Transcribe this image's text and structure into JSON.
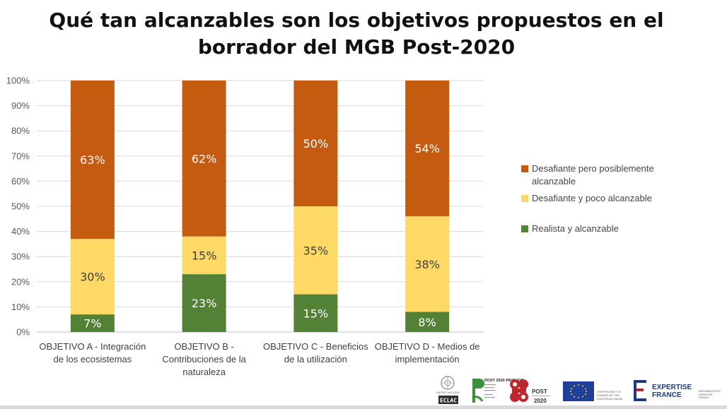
{
  "title_lines": [
    "Qué tan alcanzables son los objetivos propuestos en el",
    "borrador del MGB Post-2020"
  ],
  "chart_data": {
    "type": "bar",
    "stacked": true,
    "title": "Qué tan alcanzables son los objetivos propuestos en el borrador del MGB Post-2020",
    "categories": [
      [
        "OBJETIVO A - Integración",
        "de los ecosistemas"
      ],
      [
        "OBJETIVO B -",
        "Contribuciones de la",
        "naturaleza"
      ],
      [
        "OBJETIVO C - Beneficios",
        "de la utilización"
      ],
      [
        "OBJETIVO D - Medios de",
        "implementación"
      ]
    ],
    "series": [
      {
        "name": "Realista y alcanzable",
        "color": "#538135",
        "values": [
          7,
          23,
          15,
          8
        ],
        "labels": [
          "7%",
          "23%",
          "15%",
          "8%"
        ]
      },
      {
        "name": "Desafiante y poco alcanzable",
        "color": "#ffd966",
        "values": [
          30,
          15,
          35,
          38
        ],
        "labels": [
          "30%",
          "15%",
          "35%",
          "38%"
        ]
      },
      {
        "name": "Desafiante pero posiblemente alcanzable",
        "color": "#c55a11",
        "values": [
          63,
          62,
          50,
          54
        ],
        "labels": [
          "63%",
          "62%",
          "50%",
          "54%"
        ]
      }
    ],
    "ylim": [
      0,
      100
    ],
    "yticks": [
      "0%",
      "10%",
      "20%",
      "30%",
      "40%",
      "50%",
      "60%",
      "70%",
      "80%",
      "90%",
      "100%"
    ],
    "grid": true,
    "legend_position": "right"
  },
  "legend": [
    {
      "label": "Desafiante pero posiblemente alcanzable",
      "color": "#c55a11"
    },
    {
      "label": "Desafiante y poco alcanzable",
      "color": "#ffd966"
    },
    {
      "label": "Realista y alcanzable",
      "color": "#538135"
    }
  ],
  "logos": {
    "un_text": "UNITED NATIONS",
    "eclac": "ECLAC",
    "pavilion_text": "POST 2020 PAVILION",
    "post_text": "POST",
    "year_text": "2020",
    "eu_text": "THIS PROJECT IS FUNDED BY THE EUROPEAN UNION",
    "ef_line1": "EXPERTISE",
    "ef_line2": "FRANCE",
    "ef_small": "IMPLEMENTED BY EXPERTISE FRANCE"
  }
}
